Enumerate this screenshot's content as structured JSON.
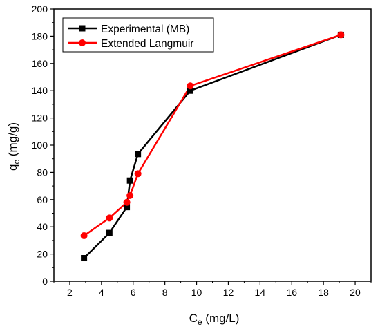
{
  "chart_data": {
    "type": "line",
    "xlabel": {
      "main": "C",
      "sub": "e",
      "unit": " (mg/L)"
    },
    "ylabel": {
      "main": "q",
      "sub": "e",
      "unit": " (mg/g)"
    },
    "xlim": [
      1,
      21
    ],
    "ylim": [
      0,
      200
    ],
    "xticks": [
      2,
      4,
      6,
      8,
      10,
      12,
      14,
      16,
      18,
      20
    ],
    "yticks": [
      0,
      20,
      40,
      60,
      80,
      100,
      120,
      140,
      160,
      180,
      200
    ],
    "grid": false,
    "legend_position": "top-left",
    "series": [
      {
        "name": "Experimental (MB)",
        "color": "#000000",
        "marker": "square",
        "x": [
          2.9,
          4.5,
          5.6,
          5.8,
          6.3,
          9.6,
          19.1
        ],
        "y": [
          17,
          35.5,
          54.5,
          74,
          93.5,
          140,
          181
        ]
      },
      {
        "name": "Extended Langmuir",
        "color": "#ff0000",
        "marker": "circle",
        "x": [
          2.9,
          4.5,
          5.6,
          5.8,
          6.3,
          9.6,
          19.1
        ],
        "y": [
          33.5,
          46.5,
          58,
          63,
          79,
          143.5,
          181
        ]
      }
    ]
  }
}
